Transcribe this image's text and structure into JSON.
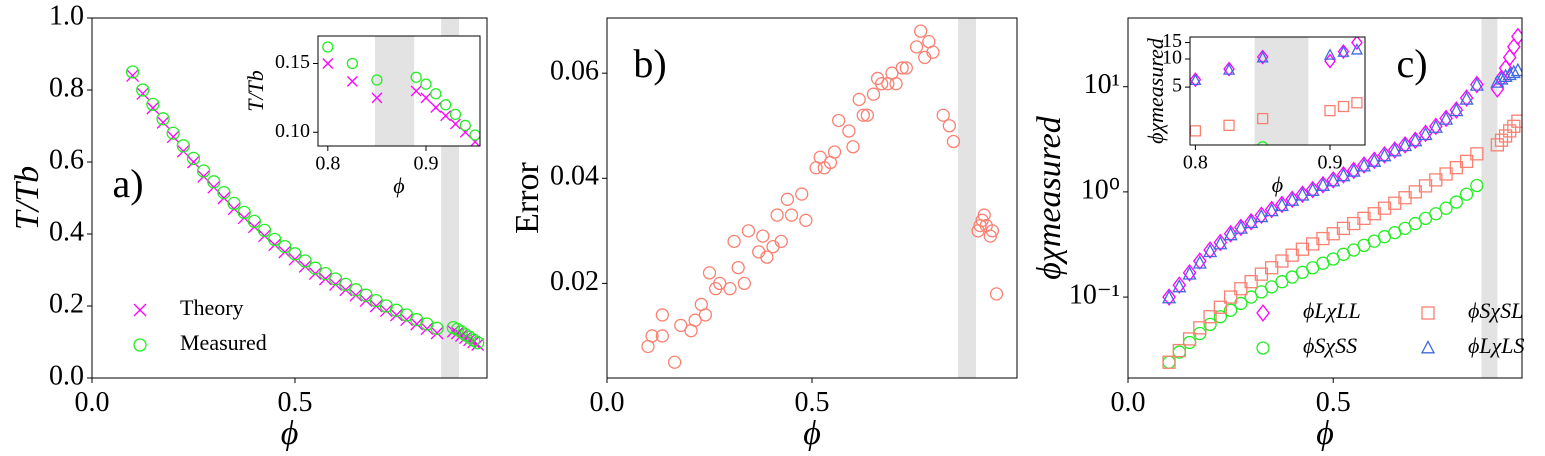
{
  "chart_data": [
    {
      "type": "scatter",
      "annotation": "a)",
      "xlabel": "ϕ",
      "ylabel": "T/Tb",
      "xlim": [
        0,
        0.973
      ],
      "ylim": [
        0,
        1
      ],
      "xticks": [
        {
          "value": 0,
          "label": "0.0"
        },
        0.5
      ],
      "yticks": [
        {
          "value": 0,
          "label": "0.0"
        },
        0.2,
        0.4,
        0.6,
        0.8,
        {
          "value": 1,
          "label": "1.0"
        }
      ],
      "shaded_region": [
        0.86,
        0.904
      ],
      "legend": "lower left",
      "x": [
        0.1,
        0.125,
        0.15,
        0.175,
        0.2,
        0.225,
        0.25,
        0.275,
        0.3,
        0.325,
        0.35,
        0.375,
        0.4,
        0.425,
        0.45,
        0.475,
        0.5,
        0.525,
        0.55,
        0.575,
        0.6,
        0.625,
        0.65,
        0.675,
        0.7,
        0.725,
        0.75,
        0.775,
        0.8,
        0.825,
        0.85,
        0.89,
        0.9,
        0.91,
        0.92,
        0.93,
        0.94,
        0.95
      ],
      "series": [
        {
          "name": "Theory",
          "color": "#ff00ff",
          "marker": "x",
          "values": [
            0.84,
            0.79,
            0.75,
            0.71,
            0.67,
            0.63,
            0.6,
            0.56,
            0.53,
            0.5,
            0.47,
            0.445,
            0.42,
            0.395,
            0.37,
            0.35,
            0.33,
            0.31,
            0.29,
            0.275,
            0.26,
            0.245,
            0.23,
            0.215,
            0.2,
            0.187,
            0.175,
            0.162,
            0.15,
            0.137,
            0.125,
            0.13,
            0.125,
            0.118,
            0.112,
            0.106,
            0.1,
            0.093
          ]
        },
        {
          "name": "Measured",
          "color": "#22ee22",
          "marker": "circle",
          "values": [
            0.85,
            0.8,
            0.76,
            0.72,
            0.68,
            0.645,
            0.61,
            0.575,
            0.545,
            0.515,
            0.485,
            0.46,
            0.435,
            0.41,
            0.385,
            0.365,
            0.345,
            0.325,
            0.305,
            0.29,
            0.275,
            0.26,
            0.245,
            0.23,
            0.215,
            0.2,
            0.188,
            0.175,
            0.162,
            0.15,
            0.138,
            0.14,
            0.135,
            0.128,
            0.12,
            0.113,
            0.105,
            0.098
          ]
        }
      ],
      "inset": {
        "xlabel": "ϕ",
        "ylabel": "T/Tb",
        "xlim": [
          0.79,
          0.955
        ],
        "ylim": [
          0.09,
          0.17
        ],
        "xticks": [
          0.8,
          0.9
        ],
        "yticks": [
          {
            "value": 0.1,
            "label": "0.10"
          },
          0.15
        ],
        "shaded_region": [
          0.848,
          0.888
        ]
      }
    },
    {
      "type": "scatter",
      "annotation": "b)",
      "xlabel": "ϕ",
      "ylabel": "Error",
      "xlim": [
        0,
        1.0
      ],
      "ylim": [
        0.002,
        0.0705
      ],
      "xticks": [
        {
          "value": 0,
          "label": "0.0"
        },
        0.5
      ],
      "yticks": [
        0.02,
        0.04,
        0.06
      ],
      "shaded_region": [
        0.856,
        0.9
      ],
      "color": "#fa8072",
      "marker": "circle",
      "x": [
        0.1,
        0.11,
        0.135,
        0.135,
        0.165,
        0.18,
        0.205,
        0.215,
        0.23,
        0.24,
        0.25,
        0.265,
        0.275,
        0.3,
        0.31,
        0.32,
        0.335,
        0.345,
        0.37,
        0.38,
        0.39,
        0.405,
        0.415,
        0.425,
        0.44,
        0.45,
        0.475,
        0.485,
        0.51,
        0.52,
        0.53,
        0.545,
        0.555,
        0.565,
        0.59,
        0.6,
        0.615,
        0.625,
        0.635,
        0.65,
        0.66,
        0.67,
        0.685,
        0.695,
        0.705,
        0.72,
        0.73,
        0.755,
        0.765,
        0.775,
        0.785,
        0.795,
        0.82,
        0.835,
        0.845,
        0.905,
        0.91,
        0.915,
        0.92,
        0.925,
        0.935,
        0.94,
        0.95
      ],
      "values": [
        0.008,
        0.01,
        0.014,
        0.01,
        0.005,
        0.012,
        0.011,
        0.013,
        0.016,
        0.014,
        0.022,
        0.019,
        0.02,
        0.019,
        0.028,
        0.023,
        0.02,
        0.03,
        0.026,
        0.029,
        0.025,
        0.027,
        0.033,
        0.028,
        0.036,
        0.033,
        0.037,
        0.032,
        0.042,
        0.044,
        0.042,
        0.043,
        0.045,
        0.051,
        0.049,
        0.046,
        0.055,
        0.052,
        0.052,
        0.056,
        0.059,
        0.058,
        0.058,
        0.06,
        0.058,
        0.061,
        0.061,
        0.065,
        0.068,
        0.063,
        0.066,
        0.064,
        0.052,
        0.05,
        0.047,
        0.03,
        0.031,
        0.032,
        0.033,
        0.031,
        0.029,
        0.03,
        0.018
      ]
    },
    {
      "type": "scatter",
      "annotation": "c)",
      "xlabel": "ϕ",
      "ylabel": "ϕχmeasured",
      "yscale": "log",
      "xlim": [
        0,
        0.96
      ],
      "ylim": [
        0.017,
        45
      ],
      "xticks": [
        {
          "value": 0,
          "label": "0.0"
        },
        0.5
      ],
      "yticks": [
        {
          "value": 0.1,
          "label": "10⁻¹"
        },
        {
          "value": 1,
          "label": "10⁰"
        },
        {
          "value": 10,
          "label": "10¹"
        }
      ],
      "shaded_region": [
        0.861,
        0.9
      ],
      "legend": "lower right",
      "x": [
        0.1,
        0.125,
        0.15,
        0.175,
        0.2,
        0.225,
        0.25,
        0.275,
        0.3,
        0.325,
        0.35,
        0.375,
        0.4,
        0.425,
        0.45,
        0.475,
        0.5,
        0.525,
        0.55,
        0.575,
        0.6,
        0.625,
        0.65,
        0.675,
        0.7,
        0.725,
        0.75,
        0.775,
        0.8,
        0.825,
        0.85,
        0.9,
        0.91,
        0.92,
        0.93,
        0.94,
        0.95
      ],
      "series": [
        {
          "name": "ϕLχLL",
          "color": "#ff00ff",
          "marker": "diamond",
          "values": [
            0.1,
            0.13,
            0.17,
            0.22,
            0.28,
            0.33,
            0.4,
            0.46,
            0.52,
            0.6,
            0.68,
            0.76,
            0.85,
            0.95,
            1.05,
            1.17,
            1.3,
            1.45,
            1.6,
            1.8,
            2.0,
            2.25,
            2.5,
            2.8,
            3.1,
            3.6,
            4.2,
            5.0,
            6.0,
            7.8,
            10.5,
            9.5,
            12,
            15,
            19,
            24,
            30
          ]
        },
        {
          "name": "ϕSχSS",
          "color": "#22ee22",
          "marker": "circle",
          "values": [
            0.024,
            0.03,
            0.037,
            0.045,
            0.055,
            0.065,
            0.075,
            0.087,
            0.1,
            0.112,
            0.125,
            0.14,
            0.155,
            0.172,
            0.19,
            0.21,
            0.23,
            0.255,
            0.28,
            0.31,
            0.34,
            0.375,
            0.41,
            0.45,
            0.5,
            0.56,
            0.62,
            0.7,
            0.8,
            0.95,
            1.15,
            null,
            null,
            null,
            null,
            null,
            null
          ]
        },
        {
          "name": "ϕSχSL",
          "color": "#fa8072",
          "marker": "square",
          "values": [
            0.024,
            0.031,
            0.04,
            0.051,
            0.065,
            0.08,
            0.1,
            0.12,
            0.14,
            0.165,
            0.19,
            0.22,
            0.25,
            0.285,
            0.32,
            0.36,
            0.4,
            0.45,
            0.5,
            0.56,
            0.62,
            0.7,
            0.78,
            0.88,
            1.0,
            1.14,
            1.3,
            1.48,
            1.7,
            1.95,
            2.3,
            2.8,
            3.1,
            3.4,
            3.8,
            4.2,
            4.7
          ]
        },
        {
          "name": "ϕLχLS",
          "color": "#4169e1",
          "marker": "triangle",
          "values": [
            0.098,
            0.125,
            0.165,
            0.21,
            0.27,
            0.32,
            0.39,
            0.45,
            0.51,
            0.58,
            0.66,
            0.74,
            0.83,
            0.93,
            1.03,
            1.15,
            1.27,
            1.42,
            1.57,
            1.76,
            1.95,
            2.2,
            2.45,
            2.75,
            3.05,
            3.5,
            4.1,
            4.9,
            5.9,
            7.6,
            10.3,
            11,
            11.8,
            12.5,
            13,
            13.6,
            14.2
          ]
        }
      ],
      "inset": {
        "xlabel": "ϕ",
        "ylabel": "ϕχmeasured",
        "xlim": [
          0.796,
          0.926
        ],
        "ylim": [
          1.2,
          17.2
        ],
        "xticks": [
          0.8,
          0.9
        ],
        "yticks": [
          5,
          10,
          15
        ],
        "shaded_region": [
          0.844,
          0.884
        ]
      }
    }
  ]
}
